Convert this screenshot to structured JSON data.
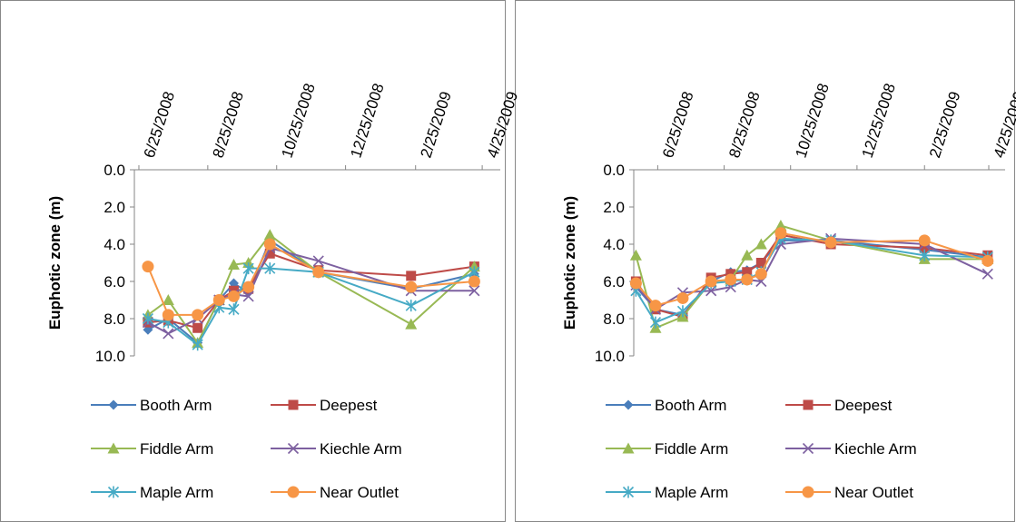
{
  "chart_data": [
    {
      "type": "line",
      "y_label": "Euphotic zone (m)",
      "y_reversed": true,
      "xlim": [
        "2008-06-21",
        "2009-05-11"
      ],
      "xticks": [
        {
          "value": "2008-06-25",
          "label": "6/25/2008"
        },
        {
          "value": "2008-08-25",
          "label": "8/25/2008"
        },
        {
          "value": "2008-10-25",
          "label": "10/25/2008"
        },
        {
          "value": "2008-12-25",
          "label": "12/25/2008"
        },
        {
          "value": "2009-02-25",
          "label": "2/25/2009"
        },
        {
          "value": "2009-04-25",
          "label": "4/25/2009"
        }
      ],
      "ylim": [
        0,
        10
      ],
      "yticks": [
        {
          "value": 0,
          "label": "0.0"
        },
        {
          "value": 2,
          "label": "2.0"
        },
        {
          "value": 4,
          "label": "4.0"
        },
        {
          "value": 6,
          "label": "6.0"
        },
        {
          "value": 8,
          "label": "8.0"
        },
        {
          "value": 10,
          "label": "10.0"
        }
      ],
      "x": [
        "2008-07-03",
        "2008-07-21",
        "2008-08-16",
        "2008-09-04",
        "2008-09-17",
        "2008-09-30",
        "2008-10-19",
        "2008-12-01",
        "2009-02-21",
        "2009-04-18"
      ],
      "series": [
        {
          "name": "Booth Arm",
          "color": "#4a7ebb",
          "marker": "diamond",
          "values": [
            8.6,
            8.0,
            9.3,
            7.0,
            6.1,
            6.6,
            3.8,
            5.5,
            6.4,
            5.6
          ]
        },
        {
          "name": "Deepest",
          "color": "#be4b48",
          "marker": "square",
          "values": [
            8.2,
            8.1,
            8.5,
            7.0,
            6.5,
            6.4,
            4.5,
            5.4,
            5.7,
            5.2
          ]
        },
        {
          "name": "Fiddle Arm",
          "color": "#98b954",
          "marker": "triangle",
          "values": [
            7.8,
            7.0,
            9.3,
            7.0,
            5.1,
            5.0,
            3.5,
            5.5,
            8.3,
            5.2
          ]
        },
        {
          "name": "Kiechle Arm",
          "color": "#7d60a0",
          "marker": "x",
          "values": [
            8.2,
            8.8,
            8.0,
            7.0,
            6.7,
            6.8,
            4.2,
            4.9,
            6.5,
            6.5
          ]
        },
        {
          "name": "Maple Arm",
          "color": "#46aac5",
          "marker": "star",
          "values": [
            8.0,
            8.2,
            9.4,
            7.4,
            7.5,
            5.3,
            5.3,
            5.5,
            7.3,
            5.5
          ]
        },
        {
          "name": "Near Outlet",
          "color": "#f79646",
          "marker": "circle",
          "values": [
            5.2,
            7.8,
            7.8,
            7.0,
            6.8,
            6.3,
            4.0,
            5.5,
            6.3,
            6.0
          ]
        }
      ]
    },
    {
      "type": "line",
      "y_label": "Euphotic zone (m)",
      "y_reversed": true,
      "xlim": [
        "2008-06-03",
        "2009-05-10"
      ],
      "xticks": [
        {
          "value": "2008-06-25",
          "label": "6/25/2008"
        },
        {
          "value": "2008-08-25",
          "label": "8/25/2008"
        },
        {
          "value": "2008-10-25",
          "label": "10/25/2008"
        },
        {
          "value": "2008-12-25",
          "label": "12/25/2008"
        },
        {
          "value": "2009-02-25",
          "label": "2/25/2009"
        },
        {
          "value": "2009-04-25",
          "label": "4/25/2009"
        }
      ],
      "ylim": [
        0,
        10
      ],
      "yticks": [
        {
          "value": 0,
          "label": "0.0"
        },
        {
          "value": 2,
          "label": "2.0"
        },
        {
          "value": 4,
          "label": "4.0"
        },
        {
          "value": 6,
          "label": "6.0"
        },
        {
          "value": 8,
          "label": "8.0"
        },
        {
          "value": 10,
          "label": "10.0"
        }
      ],
      "x": [
        "2008-06-05",
        "2008-06-23",
        "2008-07-18",
        "2008-08-13",
        "2008-08-31",
        "2008-09-15",
        "2008-09-28",
        "2008-10-16",
        "2008-12-01",
        "2009-02-25",
        "2009-04-24"
      ],
      "series": [
        {
          "name": "Booth Arm",
          "color": "#4a7ebb",
          "marker": "diamond",
          "values": [
            6.3,
            7.5,
            7.8,
            6.0,
            5.5,
            5.4,
            5.0,
            3.8,
            3.8,
            4.3,
            4.7
          ]
        },
        {
          "name": "Deepest",
          "color": "#be4b48",
          "marker": "square",
          "values": [
            6.0,
            7.5,
            7.9,
            5.8,
            5.6,
            5.5,
            5.0,
            3.5,
            4.0,
            4.2,
            4.6
          ]
        },
        {
          "name": "Fiddle Arm",
          "color": "#98b954",
          "marker": "triangle",
          "values": [
            4.6,
            8.5,
            7.9,
            6.0,
            5.9,
            4.6,
            4.0,
            3.0,
            3.8,
            4.8,
            4.8
          ]
        },
        {
          "name": "Kiechle Arm",
          "color": "#7d60a0",
          "marker": "x",
          "values": [
            6.2,
            7.5,
            6.6,
            6.5,
            6.3,
            5.9,
            6.0,
            4.0,
            3.7,
            4.0,
            5.6
          ]
        },
        {
          "name": "Maple Arm",
          "color": "#46aac5",
          "marker": "star",
          "values": [
            6.5,
            8.2,
            7.6,
            6.1,
            6.0,
            5.9,
            5.5,
            3.7,
            3.8,
            4.6,
            4.7
          ]
        },
        {
          "name": "Near Outlet",
          "color": "#f79646",
          "marker": "circle",
          "values": [
            6.1,
            7.3,
            6.9,
            6.0,
            5.9,
            5.9,
            5.6,
            3.4,
            3.9,
            3.8,
            4.9
          ]
        }
      ]
    }
  ]
}
